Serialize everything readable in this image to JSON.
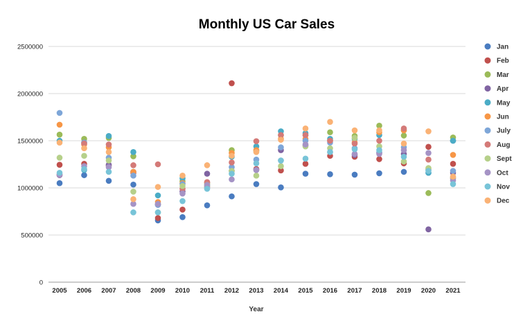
{
  "chart_data": {
    "type": "scatter",
    "title": "Monthly US Car Sales",
    "xlabel": "Year",
    "ylabel": "",
    "x": [
      2005,
      2006,
      2007,
      2008,
      2009,
      2010,
      2011,
      2012,
      2013,
      2014,
      2015,
      2016,
      2017,
      2018,
      2019,
      2020,
      2021
    ],
    "ylim": [
      0,
      2500000
    ],
    "yticks": [
      "0",
      "500000",
      "1000000",
      "1500000",
      "2000000",
      "2500000"
    ],
    "grid": true,
    "legend_position": "right",
    "series": [
      {
        "name": "Jan",
        "color": "#4a7cc0",
        "values": [
          1050000,
          1135000,
          1075000,
          1035000,
          655000,
          690000,
          815000,
          910000,
          1040000,
          1005000,
          1150000,
          1145000,
          1140000,
          1155000,
          1170000,
          1160000,
          1500000
        ]
      },
      {
        "name": "Feb",
        "color": "#c0504d",
        "values": [
          1245000,
          1255000,
          1235000,
          1160000,
          680000,
          770000,
          1060000,
          2110000,
          1200000,
          1185000,
          1255000,
          1340000,
          1330000,
          1305000,
          1260000,
          1435000,
          1255000
        ]
      },
      {
        "name": "Mar",
        "color": "#9bbb59",
        "values": [
          1565000,
          1520000,
          1530000,
          1335000,
          830000,
          1070000,
          1045000,
          1400000,
          1390000,
          1560000,
          1560000,
          1590000,
          1550000,
          1660000,
          1555000,
          945000,
          1535000
        ]
      },
      {
        "name": "Apr",
        "color": "#8064a2",
        "values": [
          1135000,
          1480000,
          1245000,
          1170000,
          820000,
          960000,
          1150000,
          1180000,
          1190000,
          1400000,
          1450000,
          1500000,
          1350000,
          1370000,
          1360000,
          560000,
          1160000
        ]
      },
      {
        "name": "May",
        "color": "#4bacc6",
        "values": [
          1500000,
          1190000,
          1550000,
          1380000,
          920000,
          1100000,
          1020000,
          1330000,
          1440000,
          1600000,
          1580000,
          1520000,
          1520000,
          1560000,
          1610000,
          1160000,
          1500000
        ]
      },
      {
        "name": "Jun",
        "color": "#f79646",
        "values": [
          1670000,
          1460000,
          1430000,
          1170000,
          850000,
          1050000,
          1010000,
          1370000,
          1400000,
          1520000,
          1520000,
          1500000,
          1480000,
          1590000,
          1610000,
          1200000,
          1350000
        ]
      },
      {
        "name": "July",
        "color": "#7ea6d8",
        "values": [
          1795000,
          1480000,
          1320000,
          1130000,
          820000,
          1040000,
          1000000,
          1220000,
          1300000,
          1430000,
          1500000,
          1480000,
          1420000,
          1380000,
          1430000,
          1190000,
          1180000
        ]
      },
      {
        "name": "Aug",
        "color": "#d47a78",
        "values": [
          1140000,
          1470000,
          1460000,
          1240000,
          1250000,
          990000,
          1060000,
          1270000,
          1495000,
          1560000,
          1560000,
          1500000,
          1470000,
          1500000,
          1630000,
          1300000,
          1100000
        ]
      },
      {
        "name": "Sept",
        "color": "#b6d08a",
        "values": [
          1320000,
          1340000,
          1290000,
          960000,
          740000,
          1020000,
          1030000,
          1180000,
          1130000,
          1230000,
          1440000,
          1420000,
          1530000,
          1440000,
          1280000,
          1210000,
          1110000
        ]
      },
      {
        "name": "Oct",
        "color": "#a593c5",
        "values": [
          1140000,
          1230000,
          1220000,
          830000,
          830000,
          940000,
          1030000,
          1090000,
          1190000,
          1290000,
          1460000,
          1380000,
          1360000,
          1360000,
          1400000,
          1370000,
          1080000
        ]
      },
      {
        "name": "Nov",
        "color": "#78c4d8",
        "values": [
          1160000,
          1200000,
          1170000,
          740000,
          740000,
          860000,
          990000,
          1150000,
          1260000,
          1290000,
          1310000,
          1380000,
          1410000,
          1400000,
          1330000,
          1180000,
          1040000
        ]
      },
      {
        "name": "Dec",
        "color": "#fab275",
        "values": [
          1480000,
          1420000,
          1380000,
          880000,
          1010000,
          1130000,
          1240000,
          1340000,
          1380000,
          1510000,
          1630000,
          1700000,
          1610000,
          1610000,
          1470000,
          1600000,
          1120000
        ]
      }
    ]
  }
}
